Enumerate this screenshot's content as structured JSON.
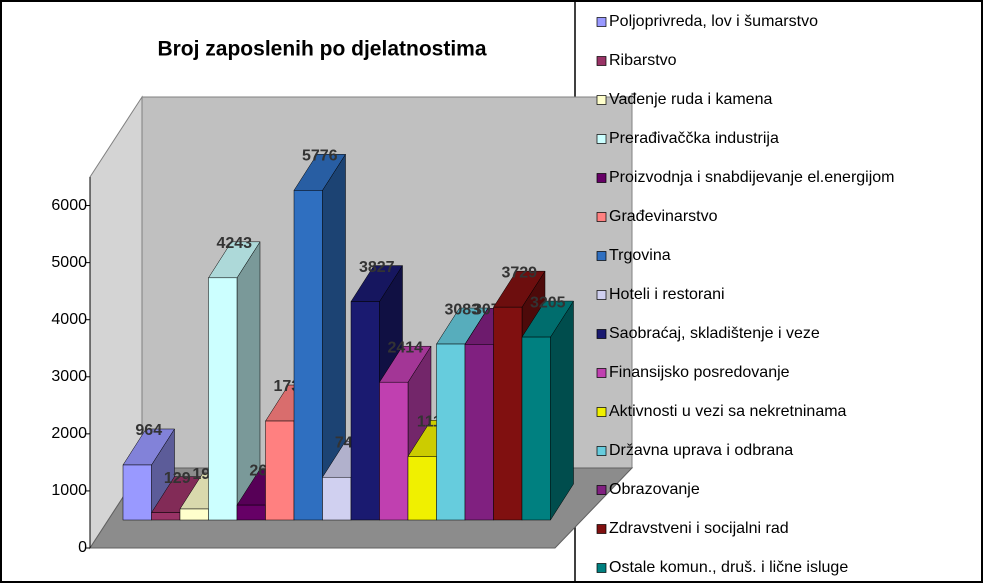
{
  "chart_data": {
    "type": "bar3d",
    "title": "Broj zaposlenih po djelatnostima",
    "categories": [
      "Poljoprivreda, lov i šumarstvo",
      "Ribarstvo",
      "Vađenje ruda i kamena",
      "Prerađivaččka industrija",
      "Proizvodnja i snabdijevanje el.energijom",
      "Građevinarstvo",
      "Trgovina",
      "Hoteli i restorani",
      "Saobraćaj, skladištenje i veze",
      "Finansijsko posredovanje",
      "Aktivnosti u vezi sa nekretninama",
      "Državna uprava i odbrana",
      "Obrazovanje",
      "Zdravstveni i socijalni rad",
      "Ostale komun., druš. i lične isluge"
    ],
    "values": [
      964,
      129,
      193,
      4243,
      261,
      1734,
      5776,
      749,
      3827,
      2414,
      1114,
      3083,
      3078,
      3729,
      3205
    ],
    "colors": [
      "#9999ff",
      "#993366",
      "#ffffcc",
      "#ccffff",
      "#660066",
      "#ff8080",
      "#2f6fc0",
      "#d0d0f0",
      "#1a1a70",
      "#c040b0",
      "#f0f000",
      "#66ccdd",
      "#802080",
      "#801010",
      "#008080"
    ],
    "ylim": [
      0,
      6500
    ],
    "yticks": [
      0,
      1000,
      2000,
      3000,
      4000,
      5000,
      6000
    ],
    "grid": false,
    "legend": "right"
  }
}
